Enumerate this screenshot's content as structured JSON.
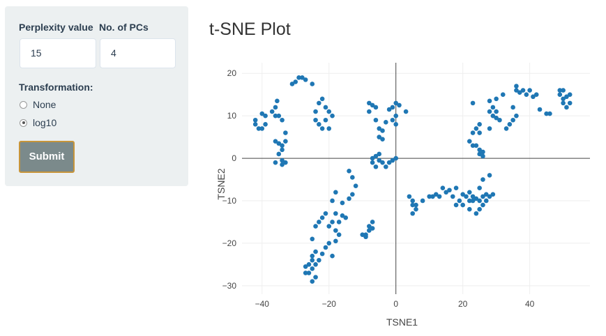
{
  "sidebar": {
    "perplexity_label": "Perplexity value",
    "perplexity_value": "15",
    "pcs_label": "No. of PCs",
    "pcs_value": "4",
    "transformation_label": "Transformation:",
    "options": [
      {
        "label": "None",
        "selected": false
      },
      {
        "label": "log10",
        "selected": true
      }
    ],
    "submit_label": "Submit"
  },
  "colors": {
    "marker": "#1f77b4",
    "sidebar_bg": "#ecf0f1",
    "submit_bg": "#7b8a8b",
    "submit_border": "#c7953a"
  },
  "plot": {
    "title": "t-SNE Plot"
  },
  "chart_data": {
    "type": "scatter",
    "title": "t-SNE Plot",
    "xlabel": "TSNE1",
    "ylabel": "TSNE2",
    "xlim": [
      -46,
      58
    ],
    "ylim": [
      -32,
      22.5
    ],
    "xticks": [
      -40,
      -20,
      0,
      20,
      40
    ],
    "yticks": [
      -30,
      -20,
      -10,
      0,
      10,
      20
    ],
    "xticklabels": [
      "−40",
      "−20",
      "0",
      "20",
      "40"
    ],
    "yticklabels": [
      "−30",
      "−20",
      "−10",
      "0",
      "10",
      "20"
    ],
    "grid": true,
    "zero_lines": true,
    "series": [
      {
        "points": [
          [
            -42,
            9
          ],
          [
            -42,
            8
          ],
          [
            -41,
            7
          ],
          [
            -40,
            7
          ],
          [
            -40,
            10.5
          ],
          [
            -39,
            8
          ],
          [
            -39,
            10
          ],
          [
            -37,
            11
          ],
          [
            -36,
            10
          ],
          [
            -35,
            10
          ],
          [
            -35.5,
            13.5
          ],
          [
            -36,
            12
          ],
          [
            -34,
            9
          ],
          [
            -36,
            4
          ],
          [
            -35,
            3.5
          ],
          [
            -34,
            3
          ],
          [
            -33,
            4
          ],
          [
            -34,
            2
          ],
          [
            -35,
            1
          ],
          [
            -34,
            -0.5
          ],
          [
            -36,
            -1
          ],
          [
            -34,
            -1.5
          ],
          [
            -33,
            -1
          ],
          [
            -33,
            6
          ],
          [
            -31,
            17.5
          ],
          [
            -30,
            18
          ],
          [
            -29,
            19
          ],
          [
            -28,
            19
          ],
          [
            -27,
            18.5
          ],
          [
            -25,
            17.5
          ],
          [
            -24,
            11
          ],
          [
            -23,
            13
          ],
          [
            -22,
            14
          ],
          [
            -21,
            12
          ],
          [
            -20,
            11
          ],
          [
            -21,
            9
          ],
          [
            -23,
            8
          ],
          [
            -22,
            7
          ],
          [
            -20,
            7
          ],
          [
            -19,
            10
          ],
          [
            -24,
            9
          ],
          [
            -8,
            13
          ],
          [
            -7,
            12.5
          ],
          [
            -6,
            12
          ],
          [
            -8,
            11
          ],
          [
            -6,
            9
          ],
          [
            -5,
            7
          ],
          [
            -4,
            6.5
          ],
          [
            -5,
            5
          ],
          [
            -4,
            4.5
          ],
          [
            -2,
            11.5
          ],
          [
            -1,
            12
          ],
          [
            0,
            13
          ],
          [
            1,
            12.5
          ],
          [
            3,
            11
          ],
          [
            0,
            10
          ],
          [
            -1,
            9
          ],
          [
            -3,
            8.5
          ],
          [
            0,
            8
          ],
          [
            -7,
            -1
          ],
          [
            -6,
            -2
          ],
          [
            -5,
            -0.5
          ],
          [
            -4,
            -1
          ],
          [
            -3,
            -2
          ],
          [
            -2,
            -1
          ],
          [
            -1,
            -0.5
          ],
          [
            0,
            0
          ],
          [
            -7,
            0
          ],
          [
            -6,
            0.5
          ],
          [
            -5,
            1
          ],
          [
            -14,
            -3
          ],
          [
            -13,
            -4.5
          ],
          [
            -12,
            -6.5
          ],
          [
            -13,
            -8.5
          ],
          [
            -14,
            -9.5
          ],
          [
            -16,
            -10.5
          ],
          [
            -18,
            -8
          ],
          [
            -19,
            -10
          ],
          [
            -18,
            -13
          ],
          [
            -16,
            -13.5
          ],
          [
            -15,
            -14
          ],
          [
            -17,
            -15
          ],
          [
            -19,
            -15
          ],
          [
            -21,
            -13
          ],
          [
            -22,
            -14
          ],
          [
            -23,
            -15
          ],
          [
            -24,
            -16
          ],
          [
            -25,
            -19
          ],
          [
            -20,
            -16
          ],
          [
            -18,
            -17
          ],
          [
            -17,
            -18
          ],
          [
            -18,
            -19.5
          ],
          [
            -20,
            -20
          ],
          [
            -21,
            -21
          ],
          [
            -22,
            -22.5
          ],
          [
            -19,
            -23
          ],
          [
            -24,
            -22
          ],
          [
            -25,
            -23
          ],
          [
            -25,
            -24
          ],
          [
            -26,
            -25
          ],
          [
            -27,
            -25.5
          ],
          [
            -25,
            -26
          ],
          [
            -26,
            -27
          ],
          [
            -24,
            -28
          ],
          [
            -25,
            -29
          ],
          [
            -27,
            -27
          ],
          [
            -24,
            -25
          ],
          [
            -23,
            -24
          ],
          [
            -8,
            -16
          ],
          [
            -7,
            -15
          ],
          [
            -8,
            -17
          ],
          [
            -9,
            -18
          ],
          [
            -10,
            -18
          ],
          [
            -9,
            -18.5
          ],
          [
            -7,
            -16.5
          ],
          [
            4,
            -9
          ],
          [
            5,
            -10
          ],
          [
            5,
            -11
          ],
          [
            6,
            -12
          ],
          [
            5,
            -13
          ],
          [
            6,
            -11
          ],
          [
            8,
            -10
          ],
          [
            10,
            -9
          ],
          [
            11,
            -9
          ],
          [
            12,
            -8.5
          ],
          [
            13,
            -9
          ],
          [
            14,
            -7
          ],
          [
            15,
            -8
          ],
          [
            16,
            -7.5
          ],
          [
            18,
            -7
          ],
          [
            17,
            -9
          ],
          [
            19,
            -10
          ],
          [
            18,
            -11
          ],
          [
            20,
            -11
          ],
          [
            22,
            -10
          ],
          [
            23,
            -9
          ],
          [
            24,
            -9.5
          ],
          [
            25,
            -10
          ],
          [
            26,
            -9
          ],
          [
            27,
            -8.5
          ],
          [
            28,
            -9
          ],
          [
            27,
            -10
          ],
          [
            26,
            -11
          ],
          [
            25,
            -12
          ],
          [
            24,
            -13
          ],
          [
            22,
            -12
          ],
          [
            23,
            -10
          ],
          [
            25,
            -7
          ],
          [
            26,
            -5
          ],
          [
            28,
            -4
          ],
          [
            22,
            -8
          ],
          [
            20,
            -8.5
          ],
          [
            21,
            -9
          ],
          [
            29,
            -8.5
          ],
          [
            23,
            13
          ],
          [
            23,
            6
          ],
          [
            24,
            7
          ],
          [
            25,
            8
          ],
          [
            24,
            3
          ],
          [
            25,
            1
          ],
          [
            26,
            0.5
          ],
          [
            26,
            1.5
          ],
          [
            25,
            2
          ],
          [
            23,
            3
          ],
          [
            22,
            4
          ],
          [
            25,
            6
          ],
          [
            28,
            7
          ],
          [
            30,
            9.5
          ],
          [
            31,
            9
          ],
          [
            29,
            12
          ],
          [
            28,
            11
          ],
          [
            30,
            11
          ],
          [
            30,
            14
          ],
          [
            28,
            13.5
          ],
          [
            32,
            15
          ],
          [
            29,
            10
          ],
          [
            33,
            7
          ],
          [
            34,
            8
          ],
          [
            35,
            9
          ],
          [
            36,
            10
          ],
          [
            35,
            12
          ],
          [
            36,
            16
          ],
          [
            37,
            15.5
          ],
          [
            39,
            15
          ],
          [
            40,
            16
          ],
          [
            41,
            14.5
          ],
          [
            42,
            15
          ],
          [
            43,
            11.5
          ],
          [
            36,
            17
          ],
          [
            38,
            16
          ],
          [
            45,
            10.5
          ],
          [
            46,
            10.5
          ],
          [
            49,
            15
          ],
          [
            50,
            16
          ],
          [
            50,
            13
          ],
          [
            51,
            12
          ],
          [
            52,
            13
          ],
          [
            52,
            15
          ],
          [
            50,
            14
          ],
          [
            49,
            16
          ],
          [
            51,
            14.5
          ]
        ]
      }
    ]
  }
}
